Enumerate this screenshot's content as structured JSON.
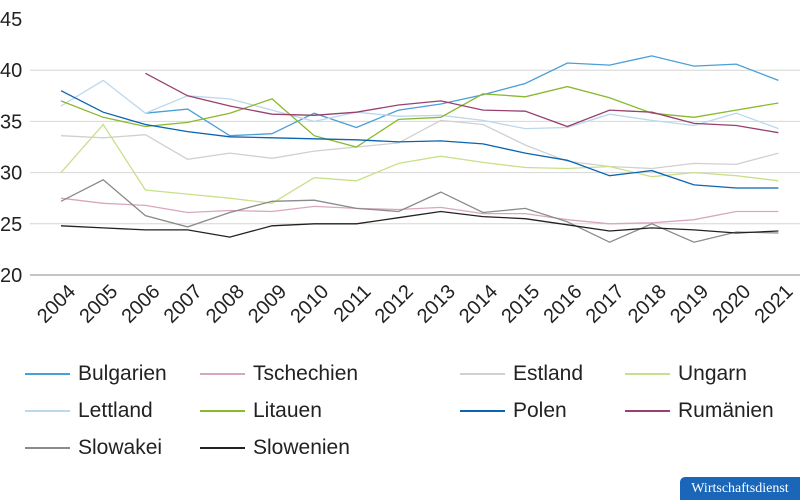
{
  "chart_data": {
    "type": "line",
    "title": "",
    "xlabel": "",
    "ylabel": "",
    "ylim": [
      20,
      45
    ],
    "yticks": [
      "20",
      "25",
      "30",
      "35",
      "40",
      "45"
    ],
    "grid": "horizontal",
    "legend_placement": "bottom",
    "categories": [
      "2004",
      "2005",
      "2006",
      "2007",
      "2008",
      "2009",
      "2010",
      "2011",
      "2012",
      "2013",
      "2014",
      "2015",
      "2016",
      "2017",
      "2018",
      "2019",
      "2020",
      "2021"
    ],
    "series": [
      {
        "name": "Bulgarien",
        "color": "#4a9fd8",
        "values": [
          null,
          null,
          35.8,
          36.2,
          33.6,
          33.8,
          35.8,
          34.4,
          36.1,
          36.7,
          37.6,
          38.7,
          40.7,
          40.5,
          41.4,
          40.4,
          40.6,
          39.0
        ]
      },
      {
        "name": "Tschechien",
        "color": "#d9a6c0",
        "values": [
          27.5,
          27.0,
          26.8,
          26.1,
          26.3,
          26.2,
          26.7,
          26.5,
          26.4,
          26.6,
          26.0,
          26.0,
          25.4,
          25.0,
          25.1,
          25.4,
          26.2,
          26.2
        ]
      },
      {
        "name": "Estland",
        "color": "#d0d0d0",
        "values": [
          33.6,
          33.4,
          33.7,
          31.3,
          31.9,
          31.4,
          32.1,
          32.5,
          32.9,
          35.1,
          34.7,
          32.7,
          31.1,
          30.6,
          30.4,
          30.9,
          30.8,
          31.9
        ]
      },
      {
        "name": "Ungarn",
        "color": "#c8e08a",
        "values": [
          30.0,
          34.7,
          28.3,
          27.9,
          27.5,
          27.0,
          29.5,
          29.2,
          30.9,
          31.6,
          31.0,
          30.5,
          30.4,
          30.6,
          29.6,
          30.0,
          29.7,
          29.2
        ]
      },
      {
        "name": "Lettland",
        "color": "#bcd8ec",
        "values": [
          36.5,
          39.0,
          35.8,
          37.5,
          37.2,
          36.1,
          35.0,
          35.9,
          35.5,
          35.6,
          35.1,
          34.3,
          34.4,
          35.7,
          35.1,
          34.6,
          35.8,
          34.3
        ]
      },
      {
        "name": "Litauen",
        "color": "#8ab82e",
        "values": [
          37.0,
          35.4,
          34.5,
          34.9,
          35.8,
          37.2,
          33.6,
          32.5,
          35.2,
          35.4,
          37.7,
          37.4,
          38.4,
          37.3,
          35.8,
          35.4,
          36.1,
          36.8
        ]
      },
      {
        "name": "Polen",
        "color": "#0a64b0",
        "values": [
          38.0,
          35.9,
          34.7,
          34.0,
          33.5,
          33.4,
          33.3,
          33.2,
          33.0,
          33.1,
          32.8,
          31.9,
          31.2,
          29.7,
          30.2,
          28.8,
          28.5,
          28.5
        ]
      },
      {
        "name": "Rumänien",
        "color": "#98406e",
        "values": [
          null,
          null,
          39.7,
          37.5,
          36.5,
          35.7,
          35.6,
          35.9,
          36.6,
          37.0,
          36.1,
          36.0,
          34.5,
          36.1,
          35.9,
          34.8,
          34.6,
          33.9
        ]
      },
      {
        "name": "Slowakei",
        "color": "#8a8a8a",
        "values": [
          27.2,
          29.3,
          25.8,
          24.7,
          26.1,
          27.2,
          27.3,
          26.5,
          26.2,
          28.1,
          26.1,
          26.5,
          25.2,
          23.2,
          25.0,
          23.2,
          24.2,
          24.1
        ]
      },
      {
        "name": "Slowenien",
        "color": "#222222",
        "values": [
          24.8,
          24.6,
          24.4,
          24.4,
          23.7,
          24.8,
          25.0,
          25.0,
          25.6,
          26.2,
          25.7,
          25.5,
          24.9,
          24.3,
          24.6,
          24.4,
          24.1,
          24.3
        ]
      }
    ]
  },
  "badge": {
    "label": "Wirtschaftsdienst",
    "color": "#1a66b8"
  }
}
